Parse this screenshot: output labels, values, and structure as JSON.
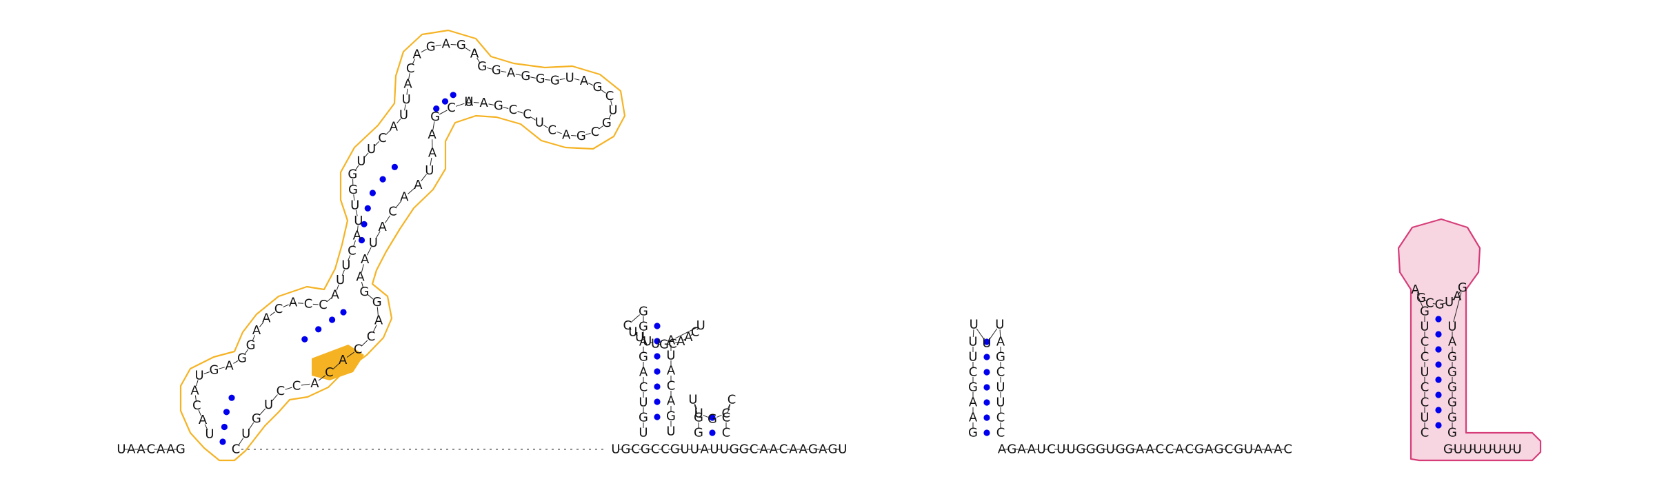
{
  "diagram": {
    "colors": {
      "motif_outline": "#f5b324",
      "motif_fill_highlight": "#f5b324",
      "terminator_outline": "#d63d78",
      "terminator_fill": "#f7d6e2",
      "base_pair_dot": "#0000ee",
      "nucleotide_text": "#111111"
    },
    "leader": "UAACAAG",
    "bottom_run_1": "UGCGCCGUUAUUGGCAACAAGAGU",
    "bottom_run_2": "AGAAUCUUGGGUGGAACCACGAGCGUAAAC",
    "tail": "GUUUUUUU",
    "motif_1_segments": {
      "seg_a": "UACAUGAGGAACACCAUUCAUUGGUUCAUUACAGAGA",
      "seg_b": "AGGAGGGUAGCUGCGACUCCGAA",
      "seg_c": "UCGAAUAACAUAAGGACCACACCUGUC"
    },
    "helix_2": {
      "strand_5p": "UGUCAGAGG",
      "loop": "CUUUUGCAACU",
      "strand_3p": "AUACAGU"
    },
    "helix_3": {
      "strand_5p": "GG",
      "loop": "UUGCC",
      "strand_3p": "CC"
    },
    "helix_4": {
      "strand_5p": "GAAGCUU",
      "loop": "UUU",
      "strand_3p": "AGCUUCC"
    },
    "terminator": {
      "strand_5p": "CUCCUCCUG",
      "loop": "AGCGUAG",
      "strand_3p": "UAGGGGGG"
    }
  }
}
